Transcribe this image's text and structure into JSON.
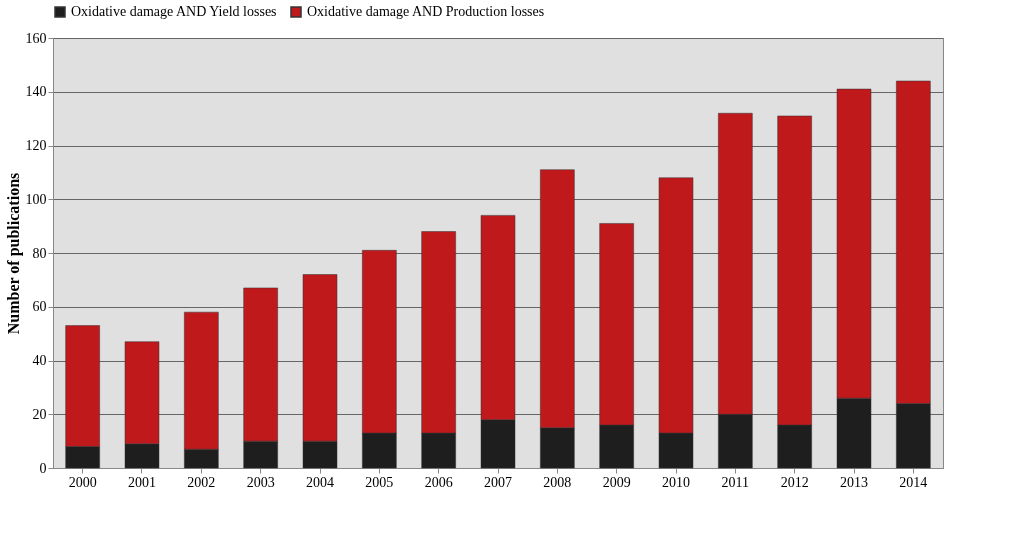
{
  "chart_data": {
    "type": "bar",
    "stacked": true,
    "ylabel": "Number of publications",
    "categories": [
      "2000",
      "2001",
      "2002",
      "2003",
      "2004",
      "2005",
      "2006",
      "2007",
      "2008",
      "2009",
      "2010",
      "2011",
      "2012",
      "2013",
      "2014"
    ],
    "series": [
      {
        "name": "Oxidative damage AND Yield losses",
        "color": "#1e1e1e",
        "values": [
          8,
          9,
          7,
          10,
          10,
          13,
          13,
          18,
          15,
          16,
          13,
          20,
          16,
          26,
          24
        ]
      },
      {
        "name": "Oxidative damage AND Production losses",
        "color": "#c0191c",
        "values": [
          45,
          38,
          51,
          57,
          62,
          68,
          75,
          76,
          96,
          75,
          95,
          112,
          115,
          115,
          120
        ]
      }
    ],
    "ylim": [
      0,
      160
    ],
    "yticks": [
      0,
      20,
      40,
      60,
      80,
      100,
      120,
      140,
      160
    ],
    "grid": "y",
    "legend": "top"
  }
}
